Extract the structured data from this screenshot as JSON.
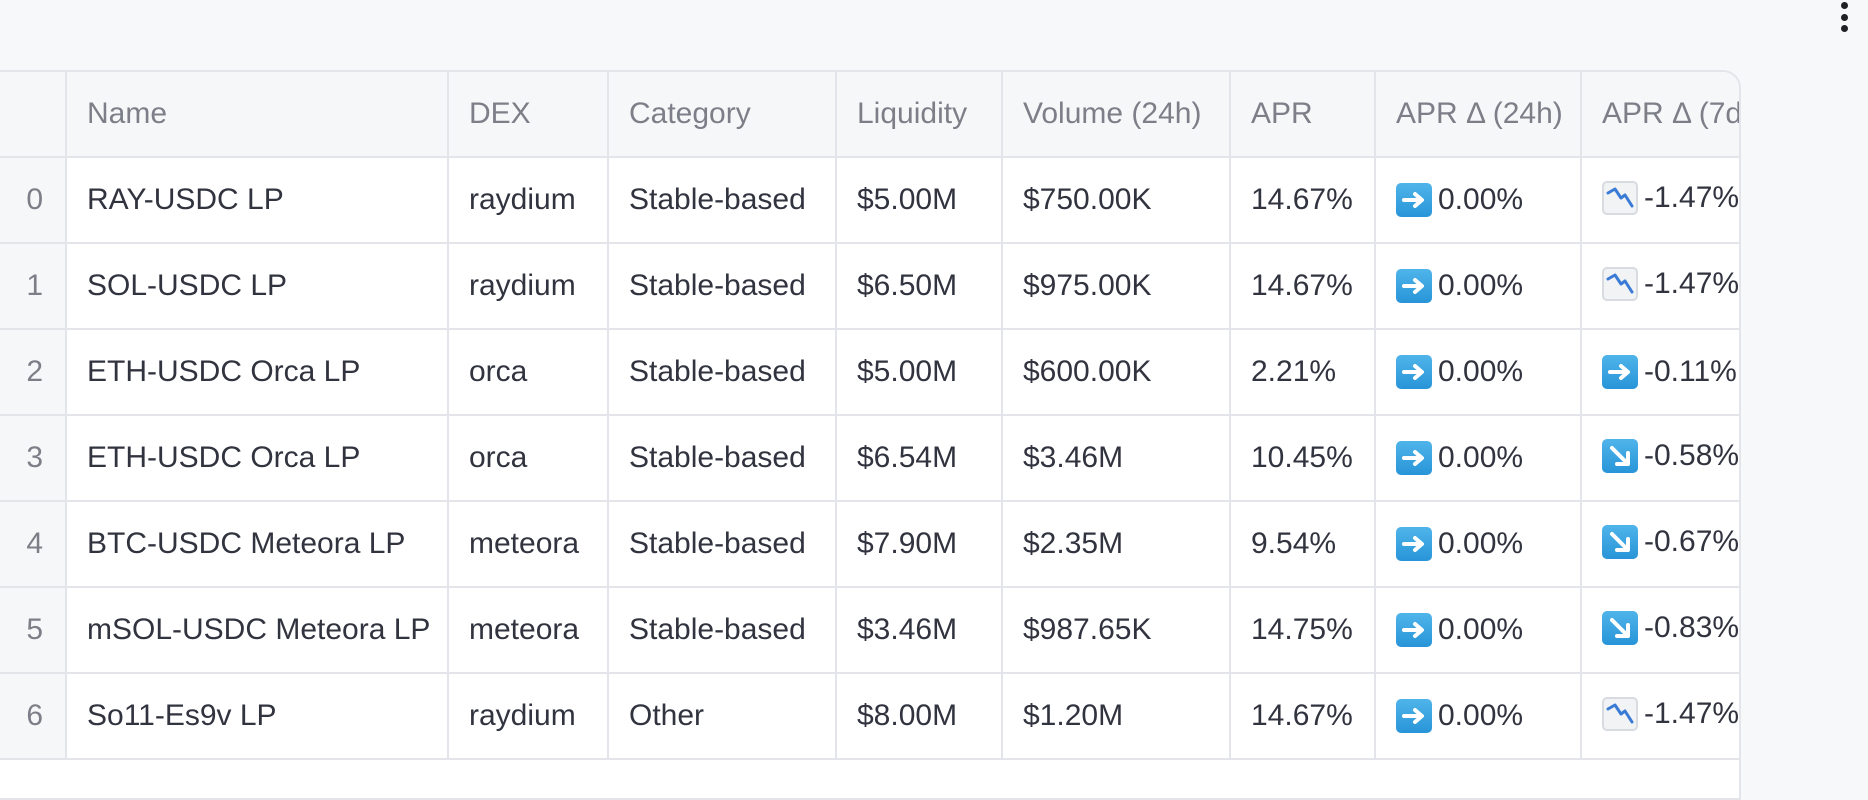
{
  "table": {
    "columns": [
      "",
      "Name",
      "DEX",
      "Category",
      "Liquidity",
      "Volume (24h)",
      "APR",
      "APR Δ (24h)",
      "APR Δ (7d"
    ],
    "rows": [
      {
        "idx": "0",
        "name": "RAY-USDC LP",
        "dex": "raydium",
        "category": "Stable-based",
        "liquidity": "$5.00M",
        "volume": "$750.00K",
        "apr": "14.67%",
        "d24_icon": "arrow-right-emoji",
        "d24": "0.00%",
        "d7_icon": "chart-decreasing-emoji",
        "d7": "-1.47%"
      },
      {
        "idx": "1",
        "name": "SOL-USDC LP",
        "dex": "raydium",
        "category": "Stable-based",
        "liquidity": "$6.50M",
        "volume": "$975.00K",
        "apr": "14.67%",
        "d24_icon": "arrow-right-emoji",
        "d24": "0.00%",
        "d7_icon": "chart-decreasing-emoji",
        "d7": "-1.47%"
      },
      {
        "idx": "2",
        "name": "ETH-USDC Orca LP",
        "dex": "orca",
        "category": "Stable-based",
        "liquidity": "$5.00M",
        "volume": "$600.00K",
        "apr": "2.21%",
        "d24_icon": "arrow-right-emoji",
        "d24": "0.00%",
        "d7_icon": "arrow-right-emoji",
        "d7": "-0.11%"
      },
      {
        "idx": "3",
        "name": "ETH-USDC Orca LP",
        "dex": "orca",
        "category": "Stable-based",
        "liquidity": "$6.54M",
        "volume": "$3.46M",
        "apr": "10.45%",
        "d24_icon": "arrow-right-emoji",
        "d24": "0.00%",
        "d7_icon": "arrow-down-right-emoji",
        "d7": "-0.58%"
      },
      {
        "idx": "4",
        "name": "BTC-USDC Meteora LP",
        "dex": "meteora",
        "category": "Stable-based",
        "liquidity": "$7.90M",
        "volume": "$2.35M",
        "apr": "9.54%",
        "d24_icon": "arrow-right-emoji",
        "d24": "0.00%",
        "d7_icon": "arrow-down-right-emoji",
        "d7": "-0.67%"
      },
      {
        "idx": "5",
        "name": "mSOL-USDC Meteora LP",
        "dex": "meteora",
        "category": "Stable-based",
        "liquidity": "$3.46M",
        "volume": "$987.65K",
        "apr": "14.75%",
        "d24_icon": "arrow-right-emoji",
        "d24": "0.00%",
        "d7_icon": "arrow-down-right-emoji",
        "d7": "-0.83%"
      },
      {
        "idx": "6",
        "name": "So11-Es9v LP",
        "dex": "raydium",
        "category": "Other",
        "liquidity": "$8.00M",
        "volume": "$1.20M",
        "apr": "14.67%",
        "d24_icon": "arrow-right-emoji",
        "d24": "0.00%",
        "d7_icon": "chart-decreasing-emoji",
        "d7": "-1.47%"
      }
    ]
  }
}
